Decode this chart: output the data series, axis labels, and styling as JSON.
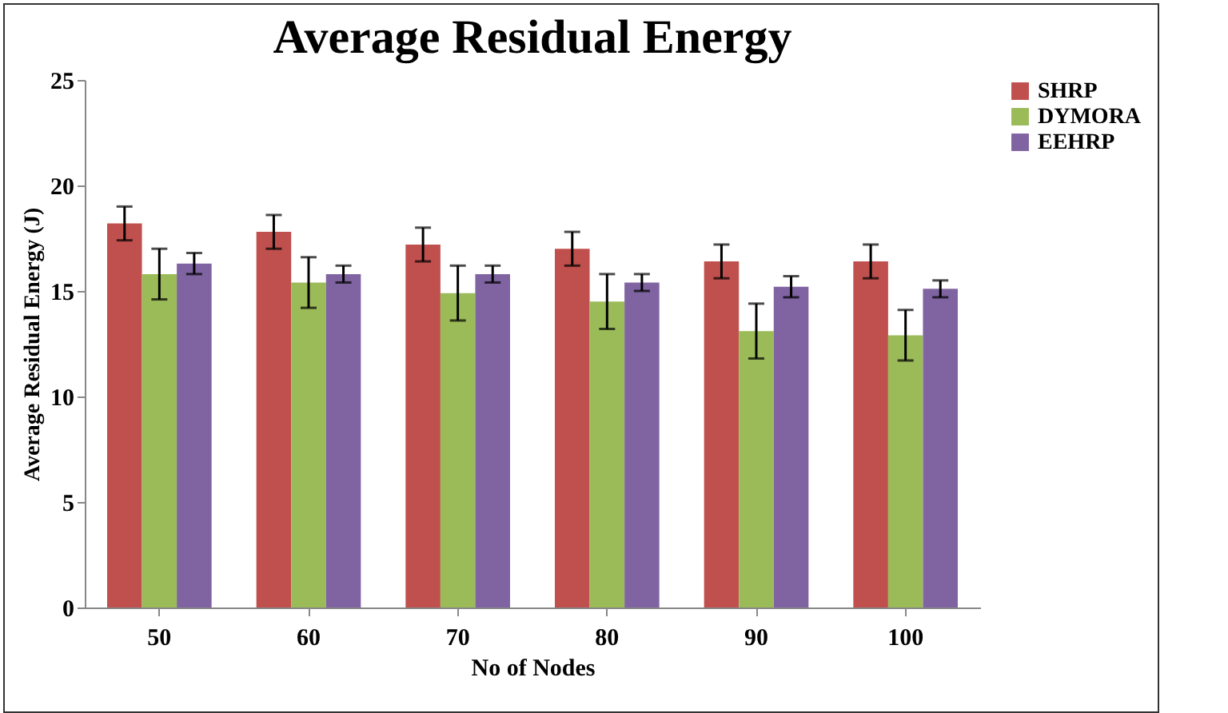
{
  "chart_data": {
    "type": "bar",
    "title": "Average Residual Energy",
    "xlabel": "No of Nodes",
    "ylabel": "Average Residual Energy (J)",
    "categories": [
      "50",
      "60",
      "70",
      "80",
      "90",
      "100"
    ],
    "series": [
      {
        "name": "SHRP",
        "color": "#c0504d",
        "values": [
          18.2,
          17.8,
          17.2,
          17.0,
          16.4,
          16.4
        ],
        "errors": [
          0.8,
          0.8,
          0.8,
          0.8,
          0.8,
          0.8
        ]
      },
      {
        "name": "DYMORA",
        "color": "#9bbb59",
        "values": [
          15.8,
          15.4,
          14.9,
          14.5,
          13.1,
          12.9
        ],
        "errors": [
          1.2,
          1.2,
          1.3,
          1.3,
          1.3,
          1.2
        ]
      },
      {
        "name": "EEHRP",
        "color": "#8064a2",
        "values": [
          16.3,
          15.8,
          15.8,
          15.4,
          15.2,
          15.1
        ],
        "errors": [
          0.5,
          0.4,
          0.4,
          0.4,
          0.5,
          0.4
        ]
      }
    ],
    "ylim": [
      0,
      25
    ],
    "yticks": [
      0,
      5,
      10,
      15,
      20,
      25
    ],
    "grid": false,
    "legend": "right"
  }
}
